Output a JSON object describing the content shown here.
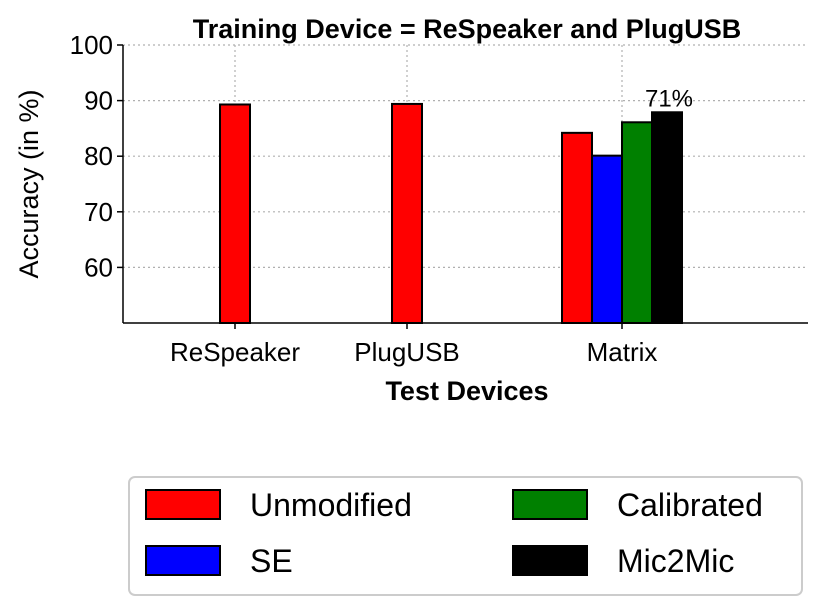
{
  "chart_data": {
    "type": "bar",
    "title": "Training Device = ReSpeaker and PlugUSB",
    "xlabel": "Test Devices",
    "ylabel": "Accuracy (in %)",
    "ylim": [
      50,
      100
    ],
    "yticks": [
      60,
      70,
      80,
      90,
      100
    ],
    "grid": true,
    "categories": [
      "ReSpeaker",
      "PlugUSB",
      "Matrix"
    ],
    "series": [
      {
        "name": "Unmodified",
        "color": "#ff0000",
        "values": [
          89.3,
          89.4,
          84.2
        ]
      },
      {
        "name": "SE",
        "color": "#0000ff",
        "values": [
          null,
          null,
          80.1
        ]
      },
      {
        "name": "Calibrated",
        "color": "#008000",
        "values": [
          null,
          null,
          86.1
        ]
      },
      {
        "name": "Mic2Mic",
        "color": "#000000",
        "values": [
          null,
          null,
          87.9
        ]
      }
    ],
    "annotations": [
      {
        "text": "71%",
        "category": "Matrix",
        "series": "Mic2Mic"
      }
    ],
    "legend": {
      "position": "bottom",
      "columns": 2
    }
  }
}
